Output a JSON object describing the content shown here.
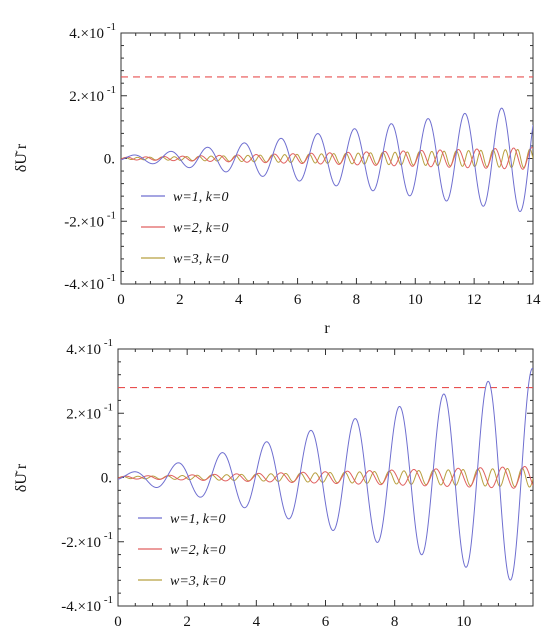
{
  "chart_data": [
    {
      "type": "line",
      "title": "",
      "xlabel": "r",
      "ylabel": "δU͂ r",
      "xlim": [
        0,
        14
      ],
      "ylim": [
        -0.4,
        0.4
      ],
      "x_ticks": [
        0,
        2,
        4,
        6,
        8,
        10,
        12,
        14
      ],
      "x_tick_labels": [
        "0",
        "2",
        "4",
        "6",
        "8",
        "10",
        "12",
        "14"
      ],
      "y_ticks": [
        0.4,
        0.2,
        0,
        -0.2,
        -0.4
      ],
      "y_tick_labels": [
        "4.×10",
        "2.×10",
        "0.",
        "-2.×10",
        "-4.×10"
      ],
      "y_tick_exponents": [
        "-1",
        "-1",
        "",
        "-1",
        "-1"
      ],
      "legend_position": "lower-left",
      "reference_line": {
        "y": 0.26,
        "style": "dashed",
        "color": "#e85050"
      },
      "series": [
        {
          "name": "w=1, k=0",
          "color": "#6f6fd0",
          "amplitude": [
            [
              0,
              0.008
            ],
            [
              14,
              0.175
            ]
          ],
          "y_offset": 0.0,
          "frequency_cycles_per_unit": 0.8,
          "x": [
            0,
            2,
            4,
            6,
            8,
            10,
            12,
            14
          ],
          "y_envelope": [
            0.008,
            0.03,
            0.05,
            0.07,
            0.1,
            0.13,
            0.15,
            0.175
          ]
        },
        {
          "name": "w=2, k=0",
          "color": "#e06060",
          "amplitude": [
            [
              0,
              0.004
            ],
            [
              14,
              0.035
            ]
          ],
          "y_offset": 0.0,
          "frequency_cycles_per_unit": 1.6
        },
        {
          "name": "w=3, k=0",
          "color": "#b8a040",
          "amplitude": [
            [
              0,
              0.003
            ],
            [
              14,
              0.03
            ]
          ],
          "y_offset": 0.0,
          "frequency_cycles_per_unit": 2.4
        }
      ]
    },
    {
      "type": "line",
      "title": "",
      "xlabel": "",
      "ylabel": "δU͂ r",
      "xlim": [
        0,
        12
      ],
      "ylim": [
        -0.4,
        0.4
      ],
      "x_ticks": [
        0,
        2,
        4,
        6,
        8,
        10
      ],
      "x_tick_labels": [
        "0",
        "2",
        "4",
        "6",
        "8",
        "10"
      ],
      "y_ticks": [
        0.4,
        0.2,
        0,
        -0.2,
        -0.4
      ],
      "y_tick_labels": [
        "4.×10",
        "2.×10",
        "0.",
        "-2.×10",
        "-4.×10"
      ],
      "y_tick_exponents": [
        "-1",
        "-1",
        "",
        "-1",
        "-1"
      ],
      "legend_position": "lower-left",
      "reference_line": {
        "y": 0.28,
        "style": "dashed",
        "color": "#e85050"
      },
      "series": [
        {
          "name": "w=1, k=0",
          "color": "#6f6fd0",
          "amplitude": [
            [
              0,
              0.01
            ],
            [
              12,
              0.34
            ]
          ],
          "y_offset": 0.0,
          "frequency_cycles_per_unit": 0.78
        },
        {
          "name": "w=2, k=0",
          "color": "#e06060",
          "amplitude": [
            [
              0,
              0.004
            ],
            [
              12,
              0.035
            ]
          ],
          "y_offset": 0.0,
          "frequency_cycles_per_unit": 1.56
        },
        {
          "name": "w=3, k=0",
          "color": "#b8a040",
          "amplitude": [
            [
              0,
              0.003
            ],
            [
              12,
              0.03
            ]
          ],
          "y_offset": 0.0,
          "frequency_cycles_per_unit": 2.34
        }
      ]
    }
  ]
}
